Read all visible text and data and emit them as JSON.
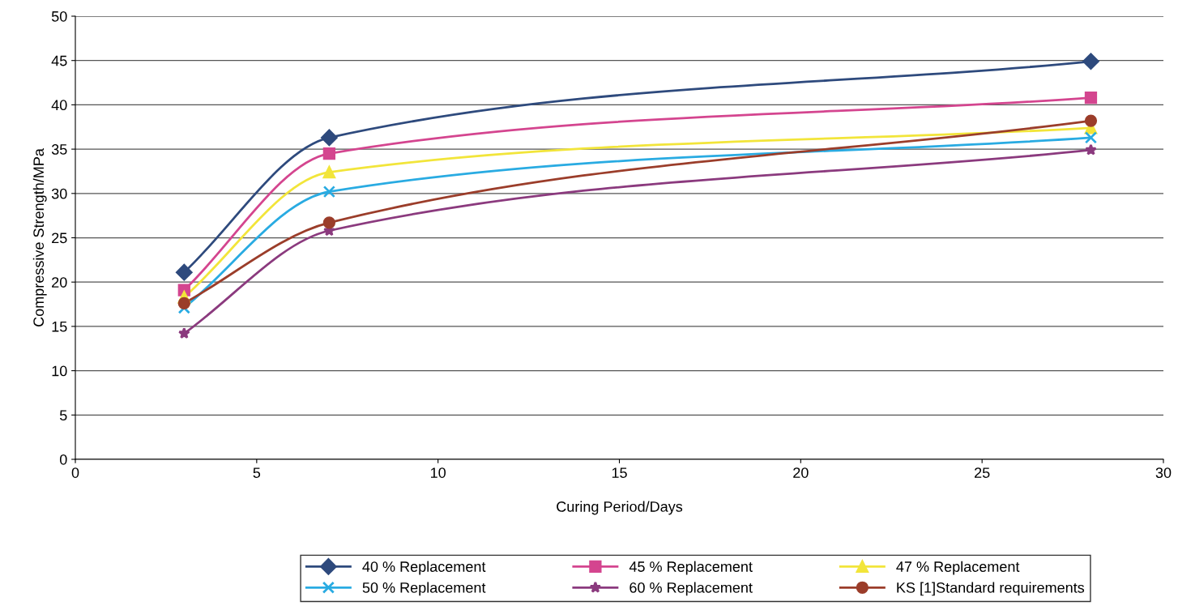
{
  "chart_data": {
    "type": "line",
    "xlabel": "Curing Period/Days",
    "ylabel": "Compressive Strength/MPa",
    "x": [
      3,
      7,
      28
    ],
    "xlim": [
      0,
      30
    ],
    "xticks": [
      0,
      5,
      10,
      15,
      20,
      25,
      30
    ],
    "ylim": [
      0,
      50
    ],
    "yticks": [
      0,
      5,
      10,
      15,
      20,
      25,
      30,
      35,
      40,
      45,
      50
    ],
    "grid": "y",
    "legend": "bottom",
    "line_style": "solid",
    "series": [
      {
        "name": "40 % Replacement",
        "color": "#2e4a7d",
        "marker": "diamond",
        "values": [
          21.1,
          36.3,
          44.9
        ]
      },
      {
        "name": "45 % Replacement",
        "color": "#d4458f",
        "marker": "square",
        "values": [
          19.1,
          34.5,
          40.8
        ]
      },
      {
        "name": "47 % Replacement",
        "color": "#f2e53a",
        "marker": "triangle",
        "values": [
          18.3,
          32.4,
          37.4
        ]
      },
      {
        "name": "50 % Replacement",
        "color": "#29abe2",
        "marker": "cross",
        "values": [
          17.1,
          30.2,
          36.3
        ]
      },
      {
        "name": "60 % Replacement",
        "color": "#8b3a7e",
        "marker": "star",
        "values": [
          14.2,
          25.8,
          34.9
        ]
      },
      {
        "name": "KS [1]Standard requirements",
        "color": "#9b3d2a",
        "marker": "circle",
        "values": [
          17.6,
          26.7,
          38.2
        ]
      }
    ]
  }
}
